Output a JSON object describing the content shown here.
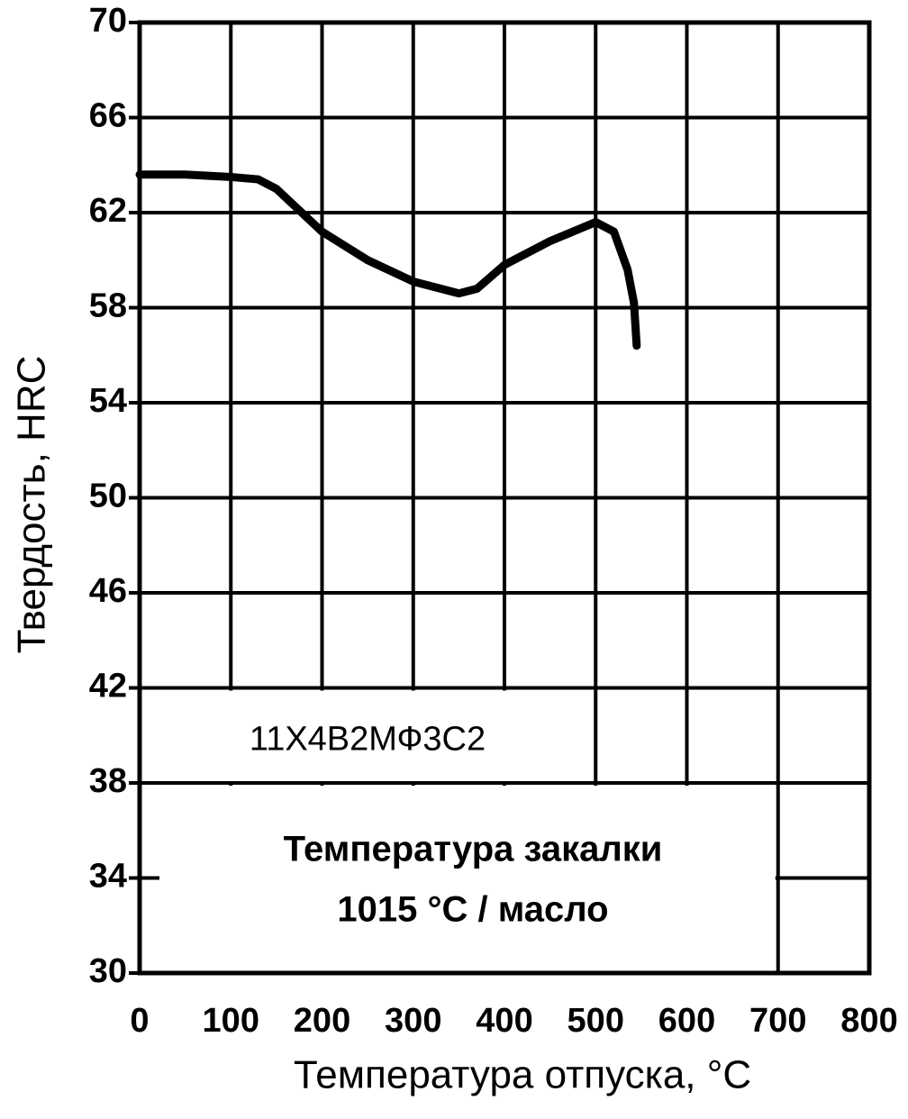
{
  "chart_data": {
    "type": "line",
    "x_label": "Температура отпуска, °C",
    "y_label": "Твердость, HRC",
    "annotations": [
      "11Х4В2МФ3С2",
      "Температура закалки",
      "1015 °C / масло"
    ],
    "x": [
      0,
      50,
      100,
      130,
      150,
      200,
      250,
      300,
      350,
      370,
      400,
      450,
      500,
      520,
      535,
      542,
      545
    ],
    "series": [
      {
        "color": "#000000",
        "values": [
          63.6,
          63.6,
          63.5,
          63.4,
          63.0,
          61.2,
          60.0,
          59.1,
          58.6,
          58.8,
          59.8,
          60.8,
          61.6,
          61.2,
          59.6,
          58.2,
          56.4
        ]
      }
    ],
    "xlim": [
      0,
      800
    ],
    "xticks": [
      0,
      100,
      200,
      300,
      400,
      500,
      600,
      700,
      800
    ],
    "ylim": [
      30,
      70
    ],
    "yticks": [
      30,
      34,
      38,
      42,
      46,
      50,
      54,
      58,
      62,
      66,
      70
    ],
    "grid": true
  }
}
